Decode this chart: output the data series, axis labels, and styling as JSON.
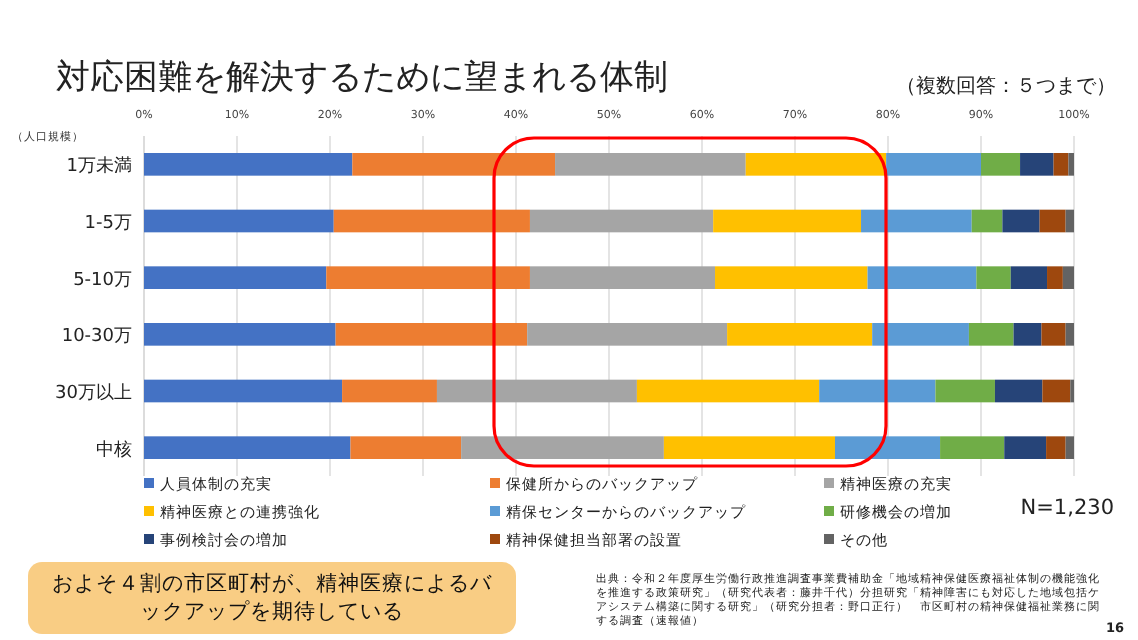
{
  "chart_data": {
    "type": "bar",
    "orientation": "horizontal",
    "stacked": true,
    "title": "対応困難を解決するために望まれる体制",
    "subtitle": "（複数回答：５つまで）",
    "ylabel": "（人口規模）",
    "categories": [
      "1万未満",
      "1-5万",
      "5-10万",
      "10-30万",
      "30万以上",
      "中核"
    ],
    "series": [
      {
        "name": "人員体制の充実",
        "color": "#4472c4",
        "values": [
          22.4,
          20.4,
          19.6,
          20.6,
          21.3,
          22.2
        ]
      },
      {
        "name": "保健所からのバックアップ",
        "color": "#ed7d31",
        "values": [
          21.8,
          21.1,
          21.9,
          20.6,
          10.2,
          11.9
        ]
      },
      {
        "name": "精神医療の充実",
        "color": "#a5a5a5",
        "values": [
          20.5,
          19.7,
          19.9,
          21.5,
          21.5,
          21.8
        ]
      },
      {
        "name": "精神医療との連携強化",
        "color": "#ffc000",
        "values": [
          15.1,
          15.9,
          16.4,
          15.6,
          19.6,
          18.4
        ]
      },
      {
        "name": "精保センターからのバックアップ",
        "color": "#5b9bd5",
        "values": [
          10.2,
          11.9,
          11.7,
          10.4,
          12.5,
          11.3
        ]
      },
      {
        "name": "研修機会の増加",
        "color": "#70ad47",
        "values": [
          4.2,
          3.3,
          3.7,
          4.8,
          6.4,
          6.9
        ]
      },
      {
        "name": "事例検討会の増加",
        "color": "#264478",
        "values": [
          3.6,
          4.0,
          3.9,
          3.0,
          5.1,
          4.5
        ]
      },
      {
        "name": "精神保健担当部署の設置",
        "color": "#9e480e",
        "values": [
          1.6,
          2.8,
          1.7,
          2.6,
          3.0,
          2.1
        ]
      },
      {
        "name": "その他",
        "color": "#636363",
        "values": [
          0.6,
          0.9,
          1.2,
          0.9,
          0.4,
          0.9
        ]
      }
    ],
    "xlim": [
      0,
      100
    ],
    "xticks": [
      {
        "value": 0,
        "label": "0%"
      },
      {
        "value": 10,
        "label": "10%"
      },
      {
        "value": 20,
        "label": "20%"
      },
      {
        "value": 30,
        "label": "30%"
      },
      {
        "value": 40,
        "label": "40%"
      },
      {
        "value": 50,
        "label": "50%"
      },
      {
        "value": 60,
        "label": "60%"
      },
      {
        "value": 70,
        "label": "70%"
      },
      {
        "value": 80,
        "label": "80%"
      },
      {
        "value": 90,
        "label": "90%"
      },
      {
        "value": 100,
        "label": "100%"
      }
    ],
    "grid": "x",
    "legend": "bottom",
    "annotations": [
      "N=1,230",
      "およそ４割の市区町村が、精神医療によるバックアップを期待している",
      "出典：令和２年度厚生労働行政推進調査事業費補助金「地域精神保健医療福祉体制の機能強化を推進する政策研究」（研究代表者：藤井千代）分担研究「精神障害にも対応した地域包括ケアシステム構築に関する研究」（研究分担者：野口正行）　市区町村の精神保健福祉業務に関する調査（速報値）",
      "16"
    ]
  }
}
